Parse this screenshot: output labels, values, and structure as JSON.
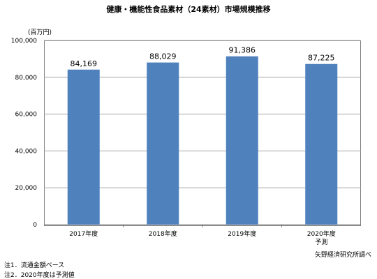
{
  "chart_data": {
    "type": "bar",
    "title": "健康・機能性食品素材（24素材）市場規模推移",
    "unit_label": "(百万円)",
    "categories": [
      "2017年度",
      "2018年度",
      "2019年度",
      "2020年度"
    ],
    "category_sublabels": [
      "",
      "",
      "",
      "予測"
    ],
    "values": [
      84169,
      88029,
      91386,
      87225
    ],
    "value_labels": [
      "84,169",
      "88,029",
      "91,386",
      "87,225"
    ],
    "ylim": [
      0,
      100000
    ],
    "yticks": [
      0,
      20000,
      40000,
      60000,
      80000,
      100000
    ],
    "ytick_labels": [
      "0",
      "20,000",
      "40,000",
      "60,000",
      "80,000",
      "100,000"
    ],
    "grid": true,
    "bar_color": "#4f81bd",
    "grid_color": "#a6a6a6"
  },
  "source": "矢野経済研究所調べ",
  "notes": [
    "注1．流通金額ベース",
    "注2．2020年度は予測値"
  ]
}
